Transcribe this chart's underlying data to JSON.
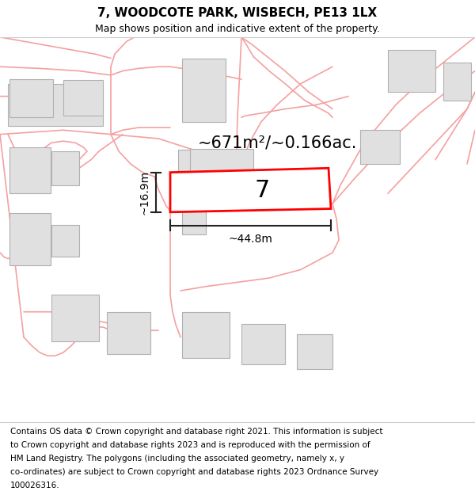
{
  "title": "7, WOODCOTE PARK, WISBECH, PE13 1LX",
  "subtitle": "Map shows position and indicative extent of the property.",
  "footer_lines": [
    "Contains OS data © Crown copyright and database right 2021. This information is subject",
    "to Crown copyright and database rights 2023 and is reproduced with the permission of",
    "HM Land Registry. The polygons (including the associated geometry, namely x, y",
    "co-ordinates) are subject to Crown copyright and database rights 2023 Ordnance Survey",
    "100026316."
  ],
  "area_label": "~671m²/~0.166ac.",
  "number_label": "7",
  "width_label": "~44.8m",
  "height_label": "~16.9m",
  "map_bg": "#ffffff",
  "road_color": "#f5a0a0",
  "building_fill": "#e0e0e0",
  "building_edge": "#b0b0b0",
  "highlight_fill": "#ffffff",
  "highlight_edge": "#ff0000",
  "highlight_lw": 2.0,
  "dim_line_color": "#222222",
  "title_fontsize": 11,
  "subtitle_fontsize": 9,
  "footer_fontsize": 7.5,
  "area_fontsize": 15,
  "number_fontsize": 22,
  "dim_fontsize": 10
}
